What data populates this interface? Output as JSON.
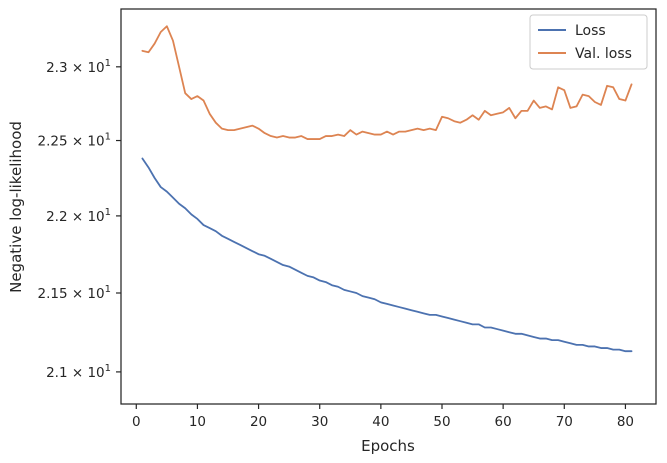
{
  "chart_data": {
    "type": "line",
    "xlabel": "Epochs",
    "ylabel": "Negative log-likelihood",
    "x": [
      1,
      2,
      3,
      4,
      5,
      6,
      7,
      8,
      9,
      10,
      11,
      12,
      13,
      14,
      15,
      16,
      17,
      18,
      19,
      20,
      21,
      22,
      23,
      24,
      25,
      26,
      27,
      28,
      29,
      30,
      31,
      32,
      33,
      34,
      35,
      36,
      37,
      38,
      39,
      40,
      41,
      42,
      43,
      44,
      45,
      46,
      47,
      48,
      49,
      50,
      51,
      52,
      53,
      54,
      55,
      56,
      57,
      58,
      59,
      60,
      61,
      62,
      63,
      64,
      65,
      66,
      67,
      68,
      69,
      70,
      71,
      72,
      73,
      74,
      75,
      76,
      77,
      78,
      79,
      80,
      81
    ],
    "xlim": [
      -2.5,
      85
    ],
    "xticks": [
      0,
      10,
      20,
      30,
      40,
      50,
      60,
      70,
      80
    ],
    "xtick_labels": [
      "0",
      "10",
      "20",
      "30",
      "40",
      "50",
      "60",
      "70",
      "80"
    ],
    "yscale": "log",
    "ylim": [
      20.8,
      23.4
    ],
    "yticks": [
      21.0,
      21.5,
      22.0,
      22.5,
      23.0
    ],
    "ytick_labels": [
      {
        "mantissa": "2.1",
        "times": "×",
        "base": "10",
        "exp": "1"
      },
      {
        "mantissa": "2.15",
        "times": "×",
        "base": "10",
        "exp": "1"
      },
      {
        "mantissa": "2.2",
        "times": "×",
        "base": "10",
        "exp": "1"
      },
      {
        "mantissa": "2.25",
        "times": "×",
        "base": "10",
        "exp": "1"
      },
      {
        "mantissa": "2.3",
        "times": "×",
        "base": "10",
        "exp": "1"
      }
    ],
    "grid": false,
    "legend": "top-right",
    "series": [
      {
        "name": "Loss",
        "color": "#4c72b0",
        "values": [
          22.38,
          22.32,
          22.25,
          22.19,
          22.16,
          22.12,
          22.08,
          22.05,
          22.01,
          21.98,
          21.94,
          21.92,
          21.9,
          21.87,
          21.85,
          21.83,
          21.81,
          21.79,
          21.77,
          21.75,
          21.74,
          21.72,
          21.7,
          21.68,
          21.67,
          21.65,
          21.63,
          21.61,
          21.6,
          21.58,
          21.57,
          21.55,
          21.54,
          21.52,
          21.51,
          21.5,
          21.48,
          21.47,
          21.46,
          21.44,
          21.43,
          21.42,
          21.41,
          21.4,
          21.39,
          21.38,
          21.37,
          21.36,
          21.36,
          21.35,
          21.34,
          21.33,
          21.32,
          21.31,
          21.3,
          21.3,
          21.28,
          21.28,
          21.27,
          21.26,
          21.25,
          21.24,
          21.24,
          21.23,
          21.22,
          21.21,
          21.21,
          21.2,
          21.2,
          21.19,
          21.18,
          21.17,
          21.17,
          21.16,
          21.16,
          21.15,
          21.15,
          21.14,
          21.14,
          21.13,
          21.13
        ]
      },
      {
        "name": "Val. loss",
        "color": "#dd8452",
        "values": [
          23.11,
          23.1,
          23.16,
          23.24,
          23.28,
          23.18,
          23.0,
          22.82,
          22.78,
          22.8,
          22.77,
          22.68,
          22.62,
          22.58,
          22.57,
          22.57,
          22.58,
          22.59,
          22.6,
          22.58,
          22.55,
          22.53,
          22.52,
          22.53,
          22.52,
          22.52,
          22.53,
          22.51,
          22.51,
          22.51,
          22.53,
          22.53,
          22.54,
          22.53,
          22.57,
          22.54,
          22.56,
          22.55,
          22.54,
          22.54,
          22.56,
          22.54,
          22.56,
          22.56,
          22.57,
          22.58,
          22.57,
          22.58,
          22.57,
          22.66,
          22.65,
          22.63,
          22.62,
          22.64,
          22.67,
          22.64,
          22.7,
          22.67,
          22.68,
          22.69,
          22.72,
          22.65,
          22.7,
          22.7,
          22.77,
          22.72,
          22.73,
          22.71,
          22.86,
          22.84,
          22.72,
          22.73,
          22.81,
          22.8,
          22.76,
          22.74,
          22.87,
          22.86,
          22.78,
          22.77,
          22.88
        ]
      }
    ]
  }
}
